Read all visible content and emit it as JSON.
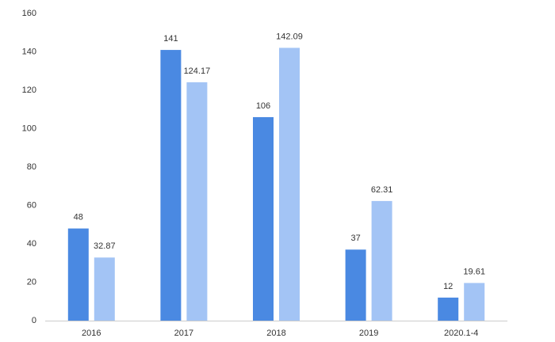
{
  "chart_data": {
    "type": "bar",
    "categories": [
      "2016",
      "2017",
      "2018",
      "2019",
      "2020.1-4"
    ],
    "series": [
      {
        "color": "#4a89e2",
        "values": [
          48,
          141,
          106,
          37,
          12
        ]
      },
      {
        "color": "#a3c4f5",
        "values": [
          32.87,
          124.17,
          142.09,
          62.31,
          19.61
        ]
      }
    ],
    "ylim": [
      0,
      160
    ],
    "yticks": [
      0,
      20,
      40,
      60,
      80,
      100,
      120,
      140,
      160
    ],
    "grid": false
  }
}
